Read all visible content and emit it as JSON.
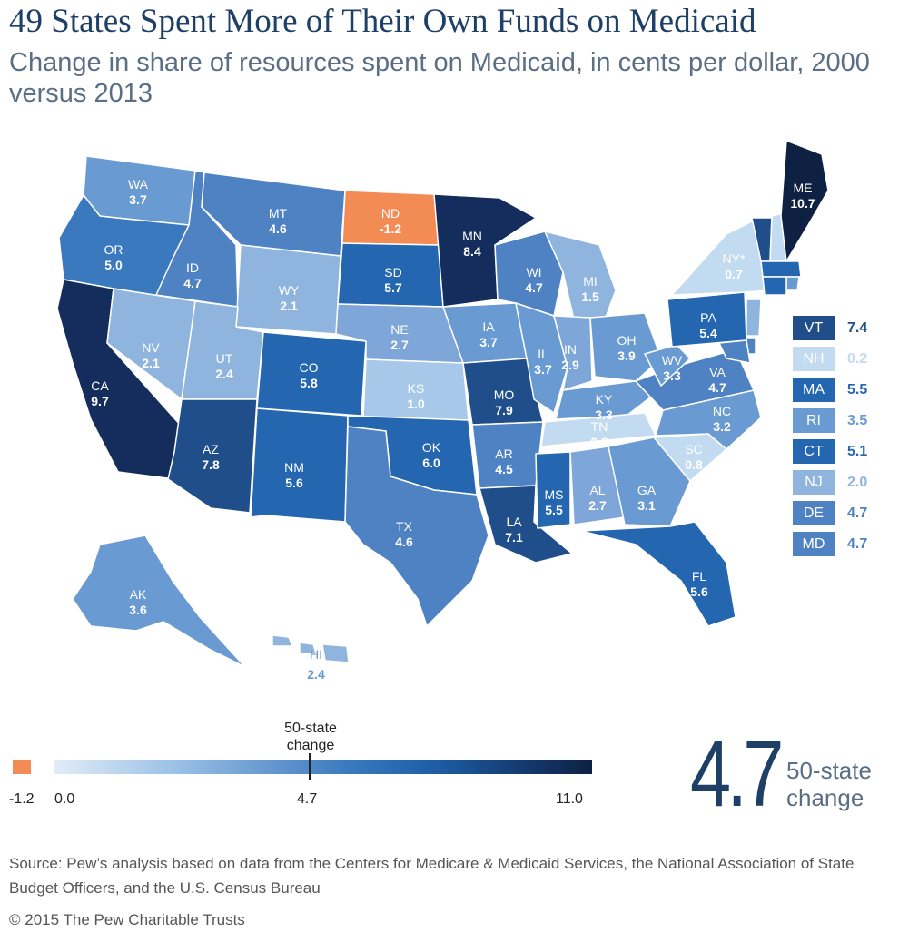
{
  "title": "49 States Spent More of Their Own Funds on Medicaid",
  "subtitle": "Change in share of resources spent on Medicaid, in cents per dollar, 2000 versus 2013",
  "colors": {
    "negative": "#f28b54",
    "very_light": "#c3dbf1",
    "light": "#8fb5de",
    "mid_light": "#6a9ad2",
    "mid": "#4f82c3",
    "dark": "#2466b0",
    "darker": "#1f4e8a",
    "darkest": "#142d5c",
    "title": "#1e3f66"
  },
  "states": [
    {
      "abbr": "WA",
      "value": "3.7",
      "color": "#6a9ad2"
    },
    {
      "abbr": "OR",
      "value": "5.0",
      "color": "#3a79be"
    },
    {
      "abbr": "CA",
      "value": "9.7",
      "color": "#142d5c"
    },
    {
      "abbr": "ID",
      "value": "4.7",
      "color": "#4f82c3"
    },
    {
      "abbr": "NV",
      "value": "2.1",
      "color": "#8fb5de"
    },
    {
      "abbr": "MT",
      "value": "4.6",
      "color": "#4f82c3"
    },
    {
      "abbr": "WY",
      "value": "2.1",
      "color": "#8fb5de"
    },
    {
      "abbr": "UT",
      "value": "2.4",
      "color": "#8fb5de"
    },
    {
      "abbr": "AZ",
      "value": "7.8",
      "color": "#1f4e8a"
    },
    {
      "abbr": "CO",
      "value": "5.8",
      "color": "#2466b0"
    },
    {
      "abbr": "NM",
      "value": "5.6",
      "color": "#2466b0"
    },
    {
      "abbr": "ND",
      "value": "-1.2",
      "color": "#f28b54"
    },
    {
      "abbr": "SD",
      "value": "5.7",
      "color": "#2466b0"
    },
    {
      "abbr": "NE",
      "value": "2.7",
      "color": "#7ea6d8"
    },
    {
      "abbr": "KS",
      "value": "1.0",
      "color": "#a8c8ea"
    },
    {
      "abbr": "OK",
      "value": "6.0",
      "color": "#2466b0"
    },
    {
      "abbr": "TX",
      "value": "4.6",
      "color": "#4f82c3"
    },
    {
      "abbr": "MN",
      "value": "8.4",
      "color": "#142d5c"
    },
    {
      "abbr": "IA",
      "value": "3.7",
      "color": "#6a9ad2"
    },
    {
      "abbr": "MO",
      "value": "7.9",
      "color": "#1f4e8a"
    },
    {
      "abbr": "AR",
      "value": "4.5",
      "color": "#4f82c3"
    },
    {
      "abbr": "LA",
      "value": "7.1",
      "color": "#1f4e8a"
    },
    {
      "abbr": "WI",
      "value": "4.7",
      "color": "#4f82c3"
    },
    {
      "abbr": "IL",
      "value": "3.7",
      "color": "#6a9ad2"
    },
    {
      "abbr": "MI",
      "value": "1.5",
      "color": "#8fb5de"
    },
    {
      "abbr": "IN",
      "value": "2.9",
      "color": "#7ea6d8"
    },
    {
      "abbr": "OH",
      "value": "3.9",
      "color": "#6a9ad2"
    },
    {
      "abbr": "KY",
      "value": "3.3",
      "color": "#6a9ad2"
    },
    {
      "abbr": "TN",
      "value": "0.3",
      "color": "#c3dbf1"
    },
    {
      "abbr": "MS",
      "value": "5.5",
      "color": "#2466b0"
    },
    {
      "abbr": "AL",
      "value": "2.7",
      "color": "#7ea6d8"
    },
    {
      "abbr": "GA",
      "value": "3.1",
      "color": "#6a9ad2"
    },
    {
      "abbr": "FL",
      "value": "5.6",
      "color": "#2466b0"
    },
    {
      "abbr": "SC",
      "value": "0.8",
      "color": "#c3dbf1"
    },
    {
      "abbr": "NC",
      "value": "3.2",
      "color": "#6a9ad2"
    },
    {
      "abbr": "VA",
      "value": "4.7",
      "color": "#4f82c3"
    },
    {
      "abbr": "WV",
      "value": "3.3",
      "color": "#6a9ad2"
    },
    {
      "abbr": "PA",
      "value": "5.4",
      "color": "#2466b0"
    },
    {
      "abbr": "NY*",
      "value": "0.7",
      "color": "#c3dbf1"
    },
    {
      "abbr": "ME",
      "value": "10.7",
      "color": "#0f2142"
    },
    {
      "abbr": "AK",
      "value": "3.6",
      "color": "#6a9ad2"
    },
    {
      "abbr": "HI",
      "value": "2.4",
      "color": "#8fb5de"
    }
  ],
  "northeast": [
    {
      "abbr": "VT",
      "value": "7.4",
      "color": "#1f4e8a"
    },
    {
      "abbr": "NH",
      "value": "0.2",
      "color": "#c3dbf1"
    },
    {
      "abbr": "MA",
      "value": "5.5",
      "color": "#2466b0"
    },
    {
      "abbr": "RI",
      "value": "3.5",
      "color": "#6a9ad2"
    },
    {
      "abbr": "CT",
      "value": "5.1",
      "color": "#2466b0"
    },
    {
      "abbr": "NJ",
      "value": "2.0",
      "color": "#8fb5de"
    },
    {
      "abbr": "DE",
      "value": "4.7",
      "color": "#4f82c3"
    },
    {
      "abbr": "MD",
      "value": "4.7",
      "color": "#4f82c3"
    }
  ],
  "legend": {
    "min_negative": "-1.2",
    "zero": "0.0",
    "average": "4.7",
    "max": "11.0",
    "average_caption": "50-state change"
  },
  "summary": {
    "value": "4.7",
    "caption": "50-state change"
  },
  "source": "Source: Pew’s analysis based on data from the Centers for Medicare & Medicaid Services, the National Association of State Budget Officers, and the U.S. Census Bureau",
  "copyright": "© 2015 The Pew Charitable Trusts"
}
